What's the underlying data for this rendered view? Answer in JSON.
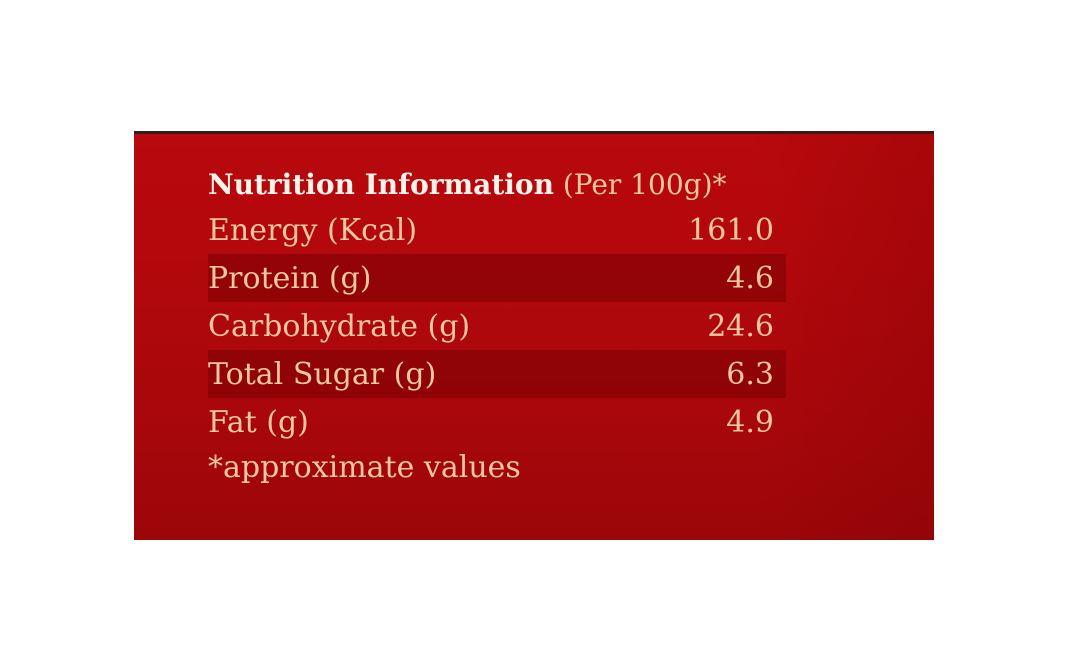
{
  "label": {
    "title": "Nutrition Information",
    "title_suffix": " (Per 100g)*",
    "rows": [
      {
        "name": "Energy (Kcal)",
        "value": "161.0"
      },
      {
        "name": "Protein (g)",
        "value": "4.6"
      },
      {
        "name": "Carbohydrate (g)",
        "value": "24.6"
      },
      {
        "name": "Total Sugar (g)",
        "value": "6.3"
      },
      {
        "name": "Fat (g)",
        "value": "4.9"
      }
    ],
    "footnote": "*approximate values"
  },
  "colors": {
    "panel": "#b3080c",
    "title_text": "#fbf3ea",
    "body_text": "#f0c7a0"
  }
}
